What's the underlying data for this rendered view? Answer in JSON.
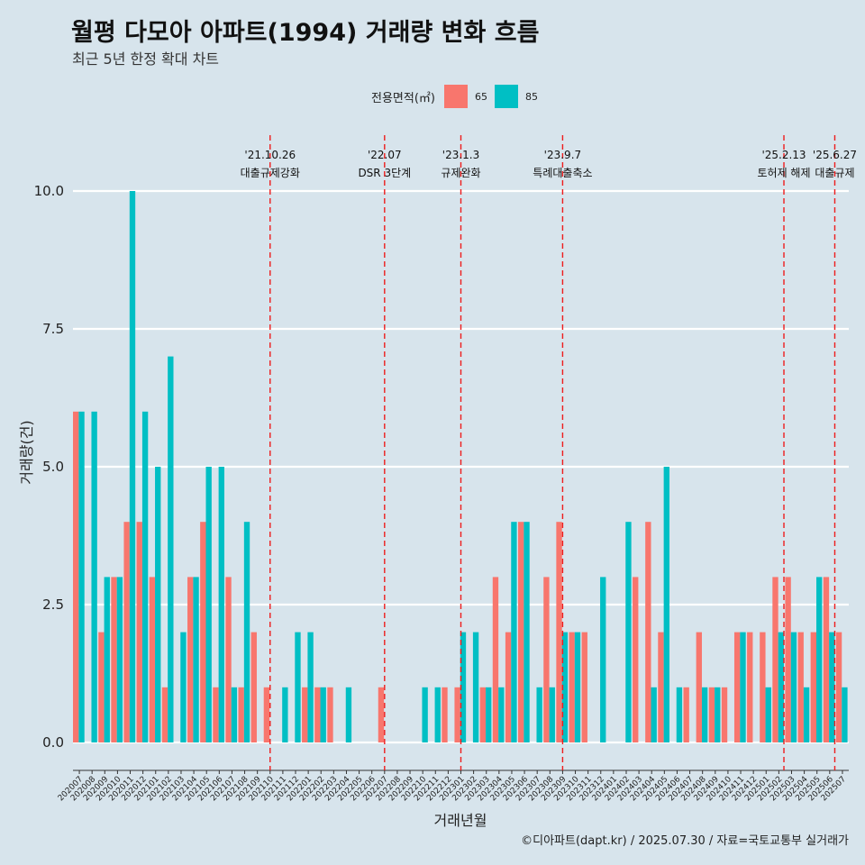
{
  "title": "월평 다모아 아파트(1994) 거래량 변화 흐름",
  "subtitle": "최근 5년 한정 확대 차트",
  "legend": {
    "title": "전용면적(㎡)",
    "items": [
      {
        "label": "65",
        "color": "#f8766d"
      },
      {
        "label": "85",
        "color": "#00bfc4"
      }
    ]
  },
  "caption": "©디아파트(dapt.kr) / 2025.07.30 / 자료=국토교통부 실거래가",
  "chart_data": {
    "type": "bar",
    "xlabel": "거래년월",
    "ylabel": "거래량(건)",
    "ylim": [
      -0.42,
      11.1
    ],
    "yticks": [
      0.0,
      2.5,
      5.0,
      7.5,
      10.0
    ],
    "ytick_labels": [
      "0.0",
      "2.5",
      "5.0",
      "7.5",
      "10.0"
    ],
    "categories": [
      "202007",
      "202008",
      "202009",
      "202010",
      "202011",
      "202012",
      "202101",
      "202102",
      "202103",
      "202104",
      "202105",
      "202106",
      "202107",
      "202108",
      "202109",
      "202110",
      "202111",
      "202112",
      "202201",
      "202202",
      "202203",
      "202204",
      "202205",
      "202206",
      "202207",
      "202208",
      "202209",
      "202210",
      "202211",
      "202212",
      "202301",
      "202302",
      "202303",
      "202304",
      "202305",
      "202306",
      "202307",
      "202308",
      "202309",
      "202310",
      "202311",
      "202312",
      "202401",
      "202402",
      "202403",
      "202404",
      "202405",
      "202406",
      "202407",
      "202408",
      "202409",
      "202410",
      "202411",
      "202412",
      "202501",
      "202502",
      "202503",
      "202504",
      "202505",
      "202506",
      "202507"
    ],
    "series": [
      {
        "name": "65",
        "color": "#f8766d",
        "values": [
          6,
          0,
          2,
          3,
          4,
          4,
          3,
          1,
          0,
          3,
          4,
          1,
          3,
          1,
          2,
          1,
          0,
          0,
          1,
          1,
          1,
          0,
          0,
          0,
          1,
          0,
          0,
          0,
          0,
          1,
          1,
          0,
          1,
          3,
          2,
          4,
          0,
          3,
          4,
          2,
          2,
          0,
          0,
          0,
          3,
          4,
          2,
          0,
          1,
          2,
          1,
          1,
          2,
          2,
          2,
          3,
          3,
          2,
          2,
          3,
          2
        ]
      },
      {
        "name": "85",
        "color": "#00bfc4",
        "values": [
          6,
          6,
          3,
          3,
          10,
          6,
          5,
          7,
          2,
          3,
          5,
          5,
          1,
          4,
          0,
          0,
          1,
          2,
          2,
          1,
          0,
          1,
          0,
          0,
          0,
          0,
          0,
          1,
          1,
          0,
          2,
          2,
          1,
          1,
          4,
          4,
          1,
          1,
          2,
          2,
          0,
          3,
          0,
          4,
          0,
          1,
          5,
          1,
          0,
          1,
          1,
          0,
          2,
          0,
          1,
          2,
          2,
          1,
          3,
          2,
          1
        ]
      }
    ],
    "events": [
      {
        "date": "'21.10.26",
        "label": "대출규제강화",
        "position": 15
      },
      {
        "date": "'22.07",
        "label": "DSR 3단계",
        "position": 24
      },
      {
        "date": "'23.1.3",
        "label": "규제완화",
        "position": 30
      },
      {
        "date": "'23.9.7",
        "label": "특례대출축소",
        "position": 38
      },
      {
        "date": "'25.2.13",
        "label": "토허제 해제",
        "position": 55.4
      },
      {
        "date": "'25.6.27",
        "label": "대출규제",
        "position": 59.4
      }
    ]
  }
}
